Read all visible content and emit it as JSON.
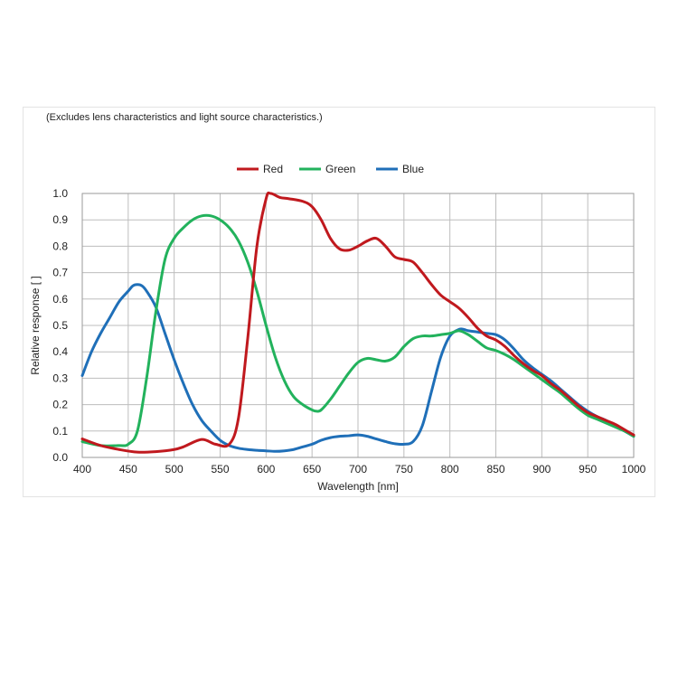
{
  "note": "(Excludes lens characteristics and light source characteristics.)",
  "chart_data": {
    "type": "line",
    "xlabel": "Wavelength [nm]",
    "ylabel": "Relative response [ ]",
    "xlim": [
      400,
      1000
    ],
    "ylim": [
      0,
      1.0
    ],
    "x_ticks": [
      "400",
      "450",
      "500",
      "550",
      "600",
      "650",
      "700",
      "750",
      "800",
      "850",
      "900",
      "950",
      "1000"
    ],
    "y_ticks": [
      "0.0",
      "0.1",
      "0.2",
      "0.3",
      "0.4",
      "0.5",
      "0.6",
      "0.7",
      "0.8",
      "0.9",
      "1.0"
    ],
    "grid": true,
    "legend_position": "top-center",
    "series": [
      {
        "name": "Red",
        "color": "#c0191e",
        "x": [
          400,
          420,
          440,
          460,
          480,
          500,
          510,
          530,
          545,
          560,
          570,
          580,
          590,
          600,
          605,
          615,
          625,
          640,
          650,
          660,
          670,
          680,
          690,
          700,
          710,
          720,
          730,
          740,
          750,
          760,
          770,
          780,
          790,
          800,
          810,
          820,
          830,
          840,
          850,
          860,
          870,
          880,
          890,
          900,
          910,
          920,
          930,
          940,
          950,
          960,
          970,
          980,
          990,
          1000
        ],
        "y": [
          0.07,
          0.045,
          0.03,
          0.02,
          0.022,
          0.03,
          0.04,
          0.068,
          0.05,
          0.05,
          0.15,
          0.45,
          0.8,
          0.98,
          1.0,
          0.985,
          0.98,
          0.97,
          0.95,
          0.9,
          0.83,
          0.79,
          0.785,
          0.8,
          0.82,
          0.83,
          0.8,
          0.76,
          0.75,
          0.74,
          0.7,
          0.655,
          0.615,
          0.59,
          0.565,
          0.53,
          0.49,
          0.46,
          0.445,
          0.42,
          0.385,
          0.355,
          0.33,
          0.31,
          0.28,
          0.255,
          0.225,
          0.195,
          0.17,
          0.155,
          0.14,
          0.125,
          0.105,
          0.085
        ]
      },
      {
        "name": "Green",
        "color": "#22b25c",
        "x": [
          400,
          420,
          440,
          450,
          460,
          470,
          480,
          490,
          500,
          510,
          520,
          530,
          540,
          550,
          560,
          570,
          580,
          590,
          600,
          610,
          620,
          630,
          640,
          650,
          655,
          660,
          670,
          680,
          690,
          700,
          710,
          720,
          730,
          740,
          750,
          760,
          770,
          780,
          790,
          800,
          810,
          820,
          830,
          840,
          850,
          860,
          870,
          880,
          890,
          900,
          910,
          920,
          930,
          940,
          950,
          960,
          970,
          980,
          990,
          1000
        ],
        "y": [
          0.06,
          0.045,
          0.045,
          0.05,
          0.1,
          0.3,
          0.55,
          0.75,
          0.83,
          0.87,
          0.9,
          0.915,
          0.915,
          0.9,
          0.87,
          0.82,
          0.74,
          0.63,
          0.5,
          0.38,
          0.29,
          0.23,
          0.2,
          0.18,
          0.175,
          0.18,
          0.22,
          0.27,
          0.32,
          0.36,
          0.375,
          0.37,
          0.365,
          0.38,
          0.42,
          0.45,
          0.46,
          0.46,
          0.465,
          0.47,
          0.48,
          0.465,
          0.44,
          0.415,
          0.405,
          0.39,
          0.37,
          0.345,
          0.32,
          0.295,
          0.27,
          0.245,
          0.215,
          0.185,
          0.16,
          0.145,
          0.13,
          0.115,
          0.1,
          0.08
        ]
      },
      {
        "name": "Blue",
        "color": "#1f6fb8",
        "x": [
          400,
          410,
          420,
          430,
          440,
          450,
          455,
          460,
          465,
          470,
          480,
          490,
          500,
          510,
          520,
          530,
          540,
          550,
          560,
          570,
          580,
          590,
          600,
          610,
          620,
          630,
          640,
          650,
          660,
          670,
          680,
          690,
          700,
          710,
          720,
          730,
          740,
          750,
          760,
          770,
          780,
          790,
          800,
          810,
          815,
          820,
          830,
          840,
          850,
          860,
          870,
          880,
          890,
          900,
          910,
          920,
          930,
          940,
          950,
          960,
          970,
          980,
          990,
          1000
        ],
        "y": [
          0.31,
          0.4,
          0.47,
          0.53,
          0.59,
          0.63,
          0.65,
          0.655,
          0.65,
          0.63,
          0.57,
          0.47,
          0.37,
          0.28,
          0.2,
          0.14,
          0.1,
          0.065,
          0.045,
          0.035,
          0.03,
          0.027,
          0.025,
          0.023,
          0.025,
          0.03,
          0.04,
          0.05,
          0.065,
          0.075,
          0.08,
          0.082,
          0.085,
          0.08,
          0.07,
          0.06,
          0.052,
          0.05,
          0.06,
          0.12,
          0.25,
          0.38,
          0.46,
          0.485,
          0.485,
          0.48,
          0.475,
          0.47,
          0.465,
          0.445,
          0.41,
          0.37,
          0.34,
          0.315,
          0.29,
          0.26,
          0.23,
          0.2,
          0.175,
          0.155,
          0.14,
          0.12,
          0.1,
          0.08
        ]
      }
    ]
  }
}
